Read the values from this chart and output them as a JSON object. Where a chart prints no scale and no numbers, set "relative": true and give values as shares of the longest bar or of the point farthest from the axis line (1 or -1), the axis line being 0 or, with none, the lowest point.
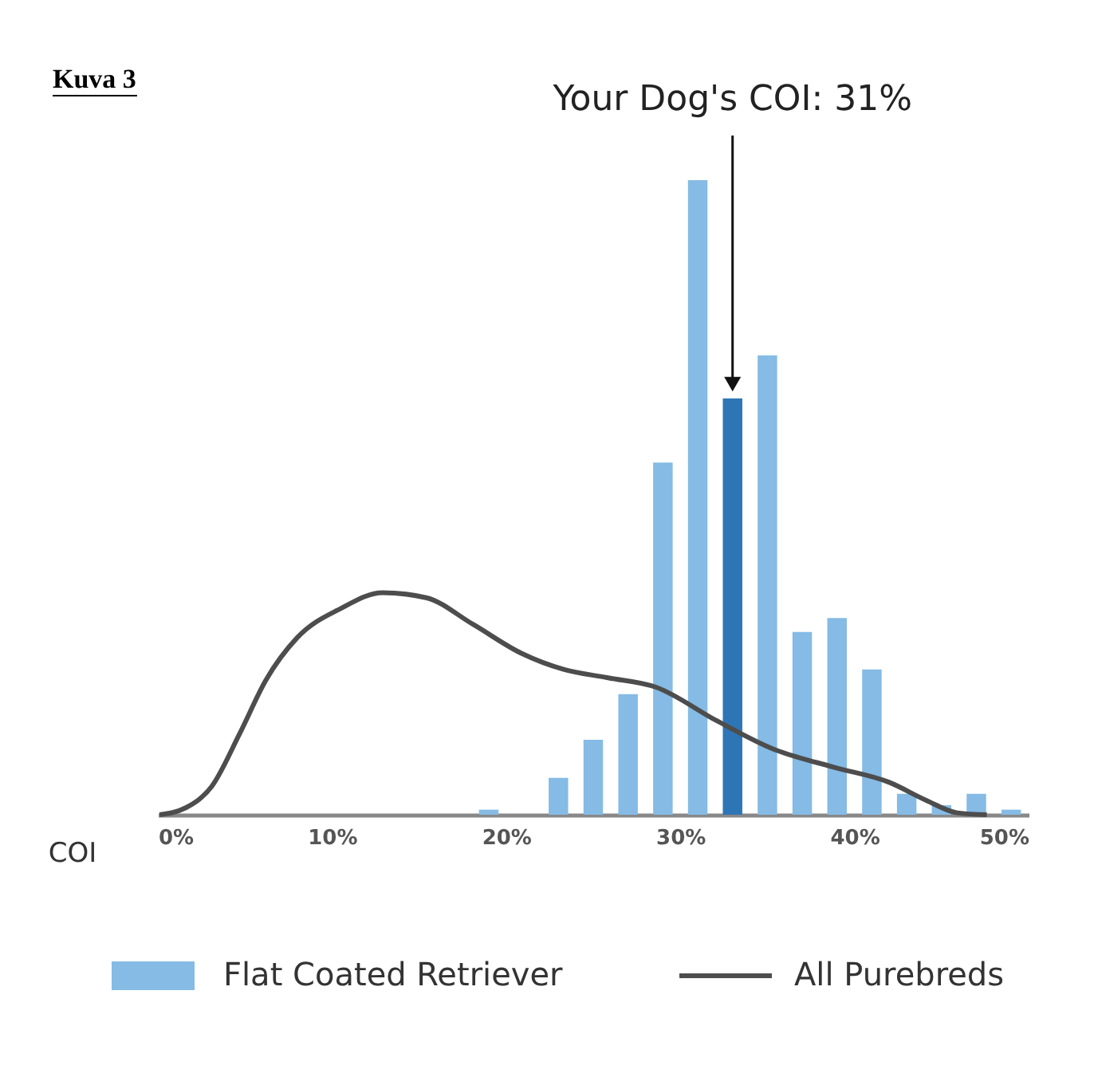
{
  "chart_data": {
    "type": "histogram",
    "title": "Kuva 3",
    "xlabel": "COI",
    "bins": [
      18,
      20,
      22,
      24,
      26,
      28,
      30,
      32,
      34,
      36,
      38,
      40,
      42,
      44,
      46,
      48,
      50
    ],
    "relative": true,
    "series": [
      {
        "name": "Flat Coated Retriever",
        "type": "histogram",
        "color": "#85bbe5",
        "colors": [
          "#85bbe5",
          "#85bbe5",
          "#85bbe5",
          "#85bbe5",
          "#85bbe5",
          "#85bbe5",
          "#85bbe5",
          "#2e75b6",
          "#85bbe5",
          "#85bbe5",
          "#85bbe5",
          "#85bbe5",
          "#85bbe5",
          "#85bbe5",
          "#85bbe5",
          "#85bbe5"
        ],
        "values": [
          0.008,
          0,
          0.058,
          0.118,
          0.19,
          0.555,
          1,
          0.656,
          0.724,
          0.288,
          0.31,
          0.229,
          0.033,
          0.015,
          0.033,
          0.008
        ]
      },
      {
        "name": "All Purebreds",
        "type": "line",
        "color": "#4d4d4d",
        "x": [
          0.1,
          1.6,
          3.1,
          4.7,
          6.2,
          8.0,
          10.5,
          12.9,
          15.4,
          18.1,
          20.9,
          23.3,
          25.8,
          28.6,
          32.1,
          35.3,
          38.8,
          42.0,
          44.1,
          45.9,
          47.6
        ],
        "values": [
          0,
          0.011,
          0.045,
          0.128,
          0.212,
          0.279,
          0.325,
          0.35,
          0.342,
          0.3,
          0.254,
          0.229,
          0.216,
          0.201,
          0.148,
          0.104,
          0.075,
          0.051,
          0.023,
          0.003,
          0
        ]
      }
    ],
    "xlim": [
      0,
      50
    ],
    "xticks": [
      {
        "value": 0,
        "label": "0%"
      },
      {
        "value": 10,
        "label": "10%"
      },
      {
        "value": 20,
        "label": "20%"
      },
      {
        "value": 30,
        "label": "30%"
      },
      {
        "value": 40,
        "label": "40%"
      },
      {
        "value": 50,
        "label": "50%"
      }
    ],
    "annotations": [
      "Your Dog's COI: 31%"
    ],
    "legend": "bottom",
    "grid": false
  }
}
